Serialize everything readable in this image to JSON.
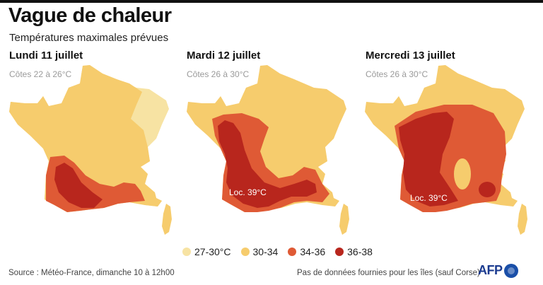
{
  "header": {
    "title": "Vague de chaleur",
    "subtitle": "Températures maximales prévues"
  },
  "colors": {
    "t27_30": "#f7e3a3",
    "t30_34": "#f6cc6d",
    "t34_36": "#df5a35",
    "t36_38": "#b8261d",
    "coast_text": "#9a9a9a",
    "afp_blue": "#1a4fa8"
  },
  "maps": [
    {
      "day": "Lundi 11 juillet",
      "coast": "Côtes 22 à 26°C",
      "label": ""
    },
    {
      "day": "Mardi 12 juillet",
      "coast": "Côtes 26 à 30°C",
      "label": "Loc. 39°C"
    },
    {
      "day": "Mercredi 13 juillet",
      "coast": "Côtes 26 à 30°C",
      "label": "Loc. 39°C"
    }
  ],
  "legend": [
    {
      "label": "27-30°C",
      "color": "#f7e3a3"
    },
    {
      "label": "30-34",
      "color": "#f6cc6d"
    },
    {
      "label": "34-36",
      "color": "#df5a35"
    },
    {
      "label": "36-38",
      "color": "#b8261d"
    }
  ],
  "footer": {
    "source": "Source : Météo-France, dimanche 10 à 12h00",
    "note": "Pas de données fournies pour les îles (sauf Corse)",
    "logo": "AFP"
  }
}
